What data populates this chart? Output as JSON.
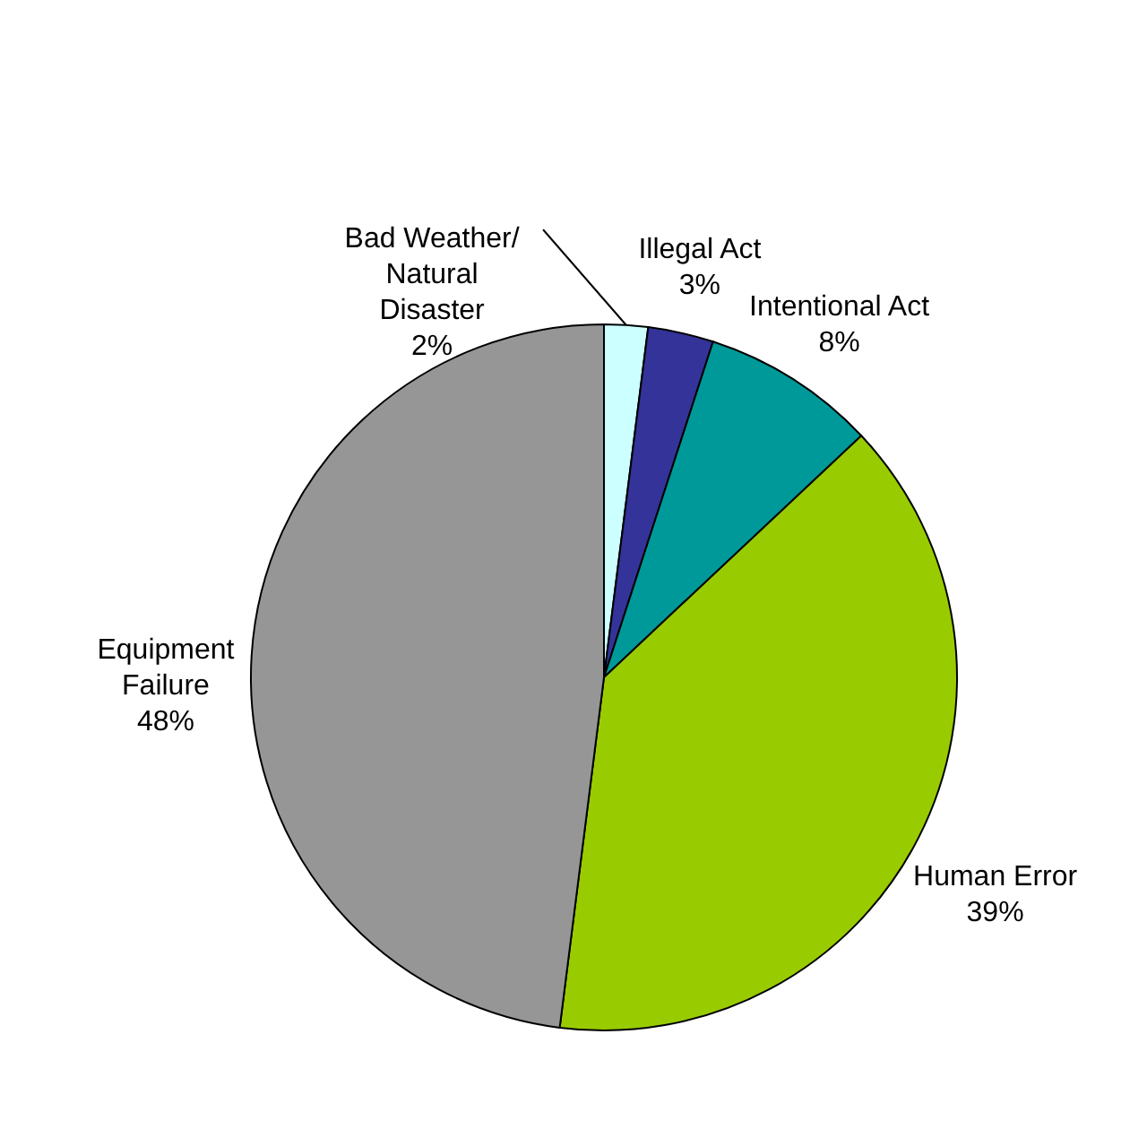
{
  "chart_data": {
    "type": "pie",
    "categories": [
      "Bad Weather/\nNatural\nDisaster",
      "Illegal Act",
      "Intentional Act",
      "Human Error",
      "Equipment\nFailure"
    ],
    "values": [
      2,
      3,
      8,
      39,
      48
    ],
    "value_labels": [
      "2%",
      "3%",
      "8%",
      "39%",
      "48%"
    ],
    "colors": [
      "#ccffff",
      "#333399",
      "#009999",
      "#99cc00",
      "#969696"
    ]
  }
}
